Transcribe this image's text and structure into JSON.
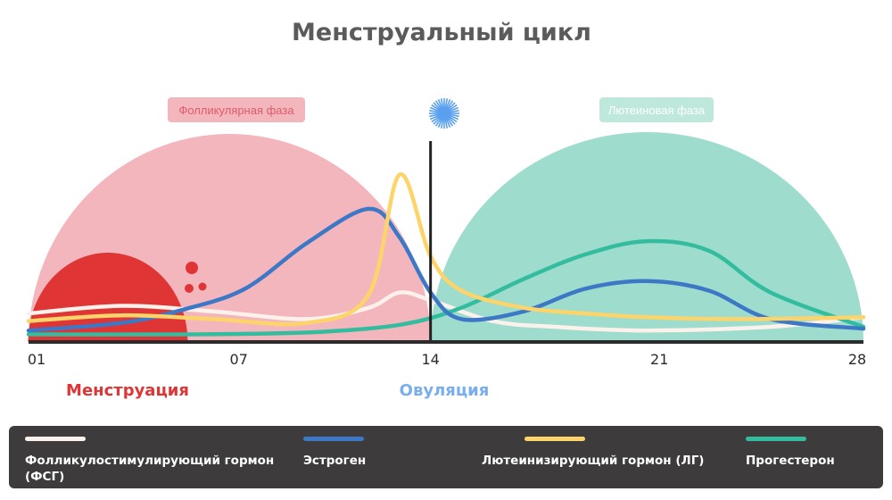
{
  "chart_data": {
    "type": "line",
    "title": "Менструальный цикл",
    "x_ticks": [
      "01",
      "07",
      "14",
      "21",
      "28"
    ],
    "xlim": [
      1,
      28
    ],
    "phases": [
      {
        "label": "Фолликулярная фаза",
        "from": 1,
        "to": 14,
        "color": "#f4b6bd",
        "label_bg": "#f4b6bd",
        "label_color": "#e05a6a"
      },
      {
        "label": "Лютеиновая фаза",
        "from": 14,
        "to": 28,
        "color": "#9edccd",
        "label_bg": "#bfe8dc",
        "label_color": "#ffffff"
      }
    ],
    "menstruation": {
      "from": 1,
      "to": 7,
      "color": "#e03535"
    },
    "ovulation_day": 14,
    "ovulation_color": "#5aa0ee",
    "events": [
      {
        "label": "Менструация",
        "color": "#e03535"
      },
      {
        "label": "Овуляция",
        "color": "#78aef0"
      }
    ],
    "series": [
      {
        "name": "Фолликулостимулирующий гормон (ФСГ)",
        "color": "#fdf1ec",
        "x": [
          1,
          4,
          7,
          10,
          12,
          13,
          14,
          16,
          18,
          21,
          25,
          28
        ],
        "y": [
          15,
          19,
          16,
          12,
          18,
          26,
          22,
          11,
          8,
          6,
          8,
          13
        ]
      },
      {
        "name": "Эстроген",
        "color": "#3d78c7",
        "x": [
          1,
          4,
          6,
          8,
          10,
          12,
          13,
          14,
          15,
          17,
          19,
          21,
          23,
          25,
          28
        ],
        "y": [
          6,
          10,
          17,
          28,
          52,
          70,
          55,
          26,
          12,
          16,
          28,
          32,
          27,
          12,
          7
        ]
      },
      {
        "name": "Лютеинизирующий гормон (ЛГ)",
        "color": "#fdd46a",
        "x": [
          1,
          4,
          7,
          10,
          12,
          13,
          14,
          15,
          17,
          19,
          21,
          24,
          28
        ],
        "y": [
          11,
          14,
          12,
          10,
          25,
          88,
          45,
          27,
          18,
          15,
          13,
          12,
          13
        ]
      },
      {
        "name": "Прогестерон",
        "color": "#33bd9e",
        "x": [
          1,
          6,
          10,
          13,
          15,
          17,
          19,
          21,
          23,
          25,
          28
        ],
        "y": [
          4,
          4,
          5,
          9,
          18,
          33,
          46,
          53,
          48,
          26,
          8
        ]
      }
    ]
  }
}
